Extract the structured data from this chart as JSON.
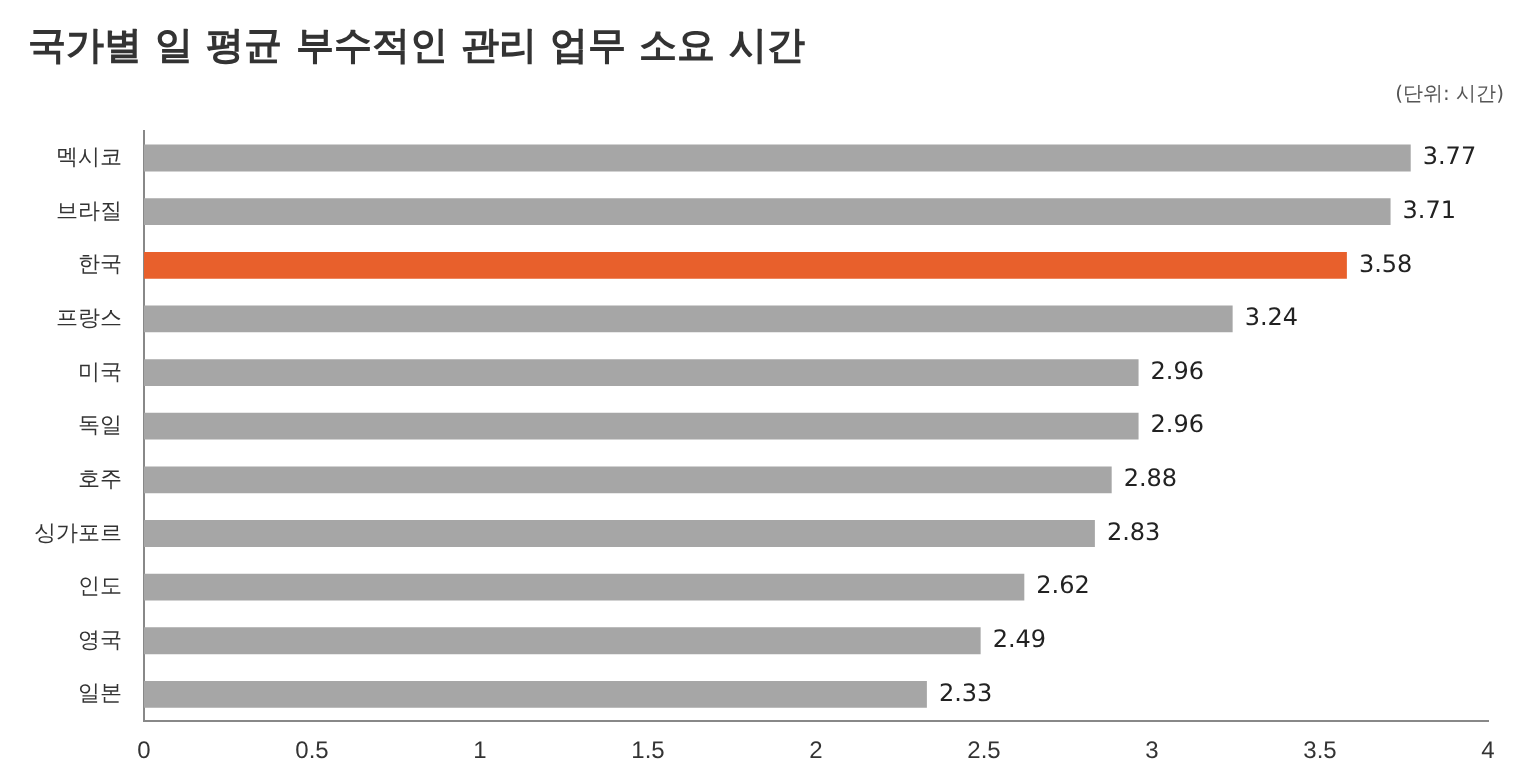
{
  "chart_data": {
    "type": "bar",
    "orientation": "horizontal",
    "title": "국가별 일 평균 부수적인 관리 업무 소요 시간",
    "annotations": [
      "(단위: 시간)"
    ],
    "categories": [
      "멕시코",
      "브라질",
      "한국",
      "프랑스",
      "미국",
      "독일",
      "호주",
      "싱가포르",
      "인도",
      "영국",
      "일본"
    ],
    "values": [
      3.77,
      3.71,
      3.58,
      3.24,
      2.96,
      2.96,
      2.88,
      2.83,
      2.62,
      2.49,
      2.33
    ],
    "colors": [
      "#a6a6a6",
      "#a6a6a6",
      "#e8602c",
      "#a6a6a6",
      "#a6a6a6",
      "#a6a6a6",
      "#a6a6a6",
      "#a6a6a6",
      "#a6a6a6",
      "#a6a6a6",
      "#a6a6a6"
    ],
    "xlim": [
      0,
      4
    ],
    "xticks": [
      0,
      0.5,
      1,
      1.5,
      2,
      2.5,
      3,
      3.5,
      4
    ],
    "data_labels": true,
    "grid": false,
    "legend": false
  }
}
